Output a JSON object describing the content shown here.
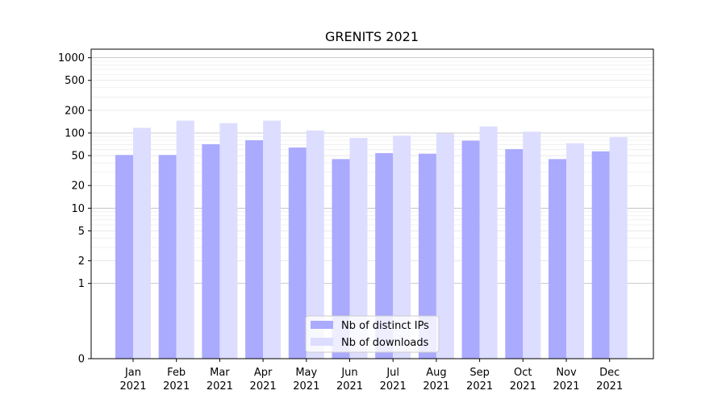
{
  "chart_data": {
    "type": "bar",
    "title": "GRENITS 2021",
    "xlabel": "",
    "ylabel": "",
    "y_scale": "symlog",
    "ylim": [
      0,
      1300
    ],
    "y_ticks": [
      0,
      1,
      2,
      5,
      10,
      20,
      50,
      100,
      200,
      500,
      1000
    ],
    "grid": true,
    "legend_position": "lower-center",
    "categories": [
      [
        "Jan",
        "2021"
      ],
      [
        "Feb",
        "2021"
      ],
      [
        "Mar",
        "2021"
      ],
      [
        "Apr",
        "2021"
      ],
      [
        "May",
        "2021"
      ],
      [
        "Jun",
        "2021"
      ],
      [
        "Jul",
        "2021"
      ],
      [
        "Aug",
        "2021"
      ],
      [
        "Sep",
        "2021"
      ],
      [
        "Oct",
        "2021"
      ],
      [
        "Nov",
        "2021"
      ],
      [
        "Dec",
        "2021"
      ]
    ],
    "series": [
      {
        "name": "Nb of distinct IPs",
        "color": "#aaaaff",
        "values": [
          51,
          51,
          71,
          80,
          64,
          45,
          54,
          53,
          79,
          61,
          45,
          57
        ]
      },
      {
        "name": "Nb of downloads",
        "color": "#ddddff",
        "values": [
          117,
          146,
          135,
          146,
          108,
          86,
          92,
          99,
          122,
          104,
          73,
          88
        ]
      }
    ]
  }
}
